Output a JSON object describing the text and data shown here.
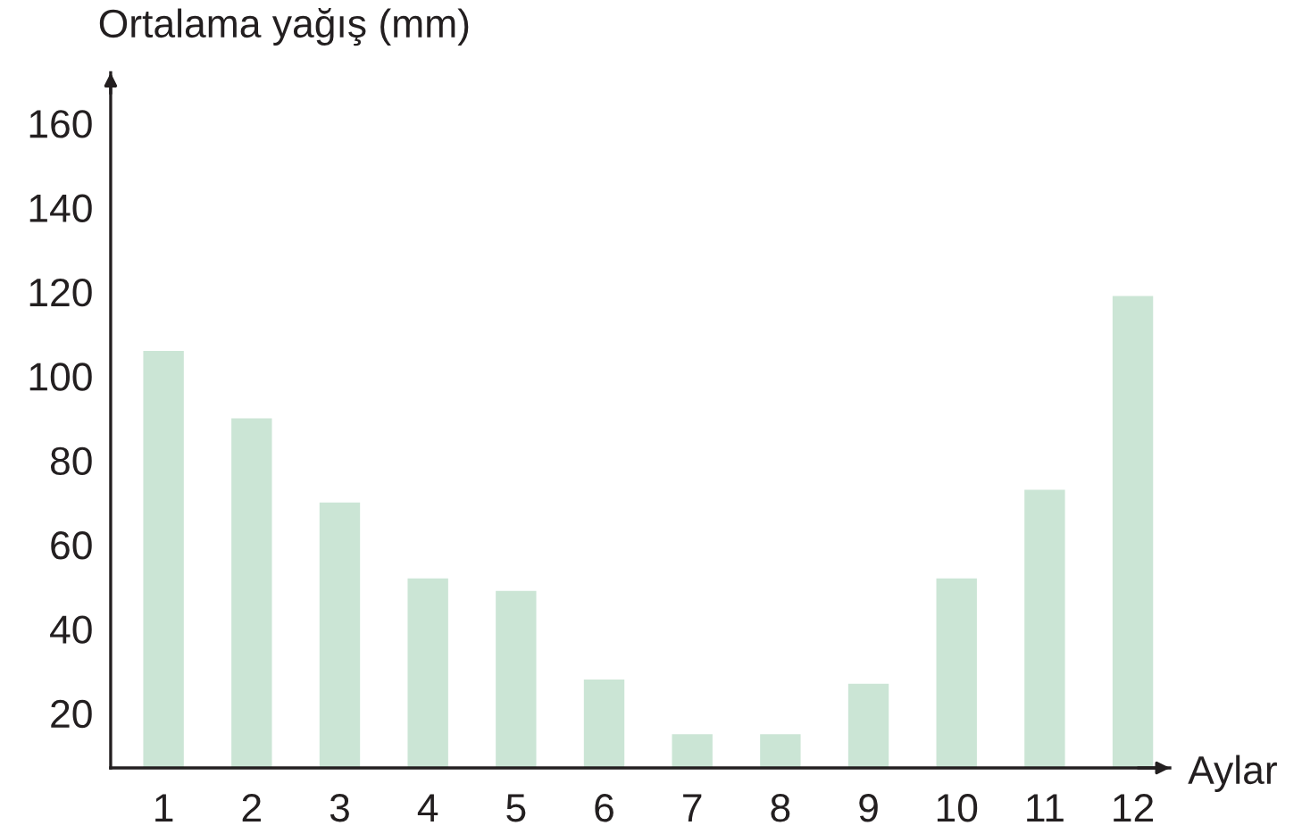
{
  "chart_data": {
    "type": "bar",
    "ylabel": "Ortalama yağış (mm)",
    "xlabel": "Aylar",
    "categories": [
      "1",
      "2",
      "3",
      "4",
      "5",
      "6",
      "7",
      "8",
      "9",
      "10",
      "11",
      "12"
    ],
    "values": [
      106,
      90,
      70,
      52,
      49,
      28,
      15,
      15,
      27,
      52,
      73,
      119
    ],
    "color": "#cbe5d5",
    "ylim": [
      7,
      172
    ],
    "yticks": [
      20,
      40,
      60,
      80,
      100,
      120,
      140,
      160
    ]
  }
}
